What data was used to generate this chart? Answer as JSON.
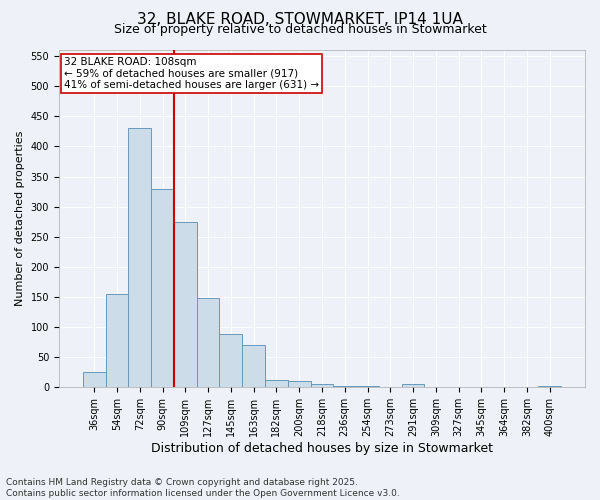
{
  "title1": "32, BLAKE ROAD, STOWMARKET, IP14 1UA",
  "title2": "Size of property relative to detached houses in Stowmarket",
  "xlabel": "Distribution of detached houses by size in Stowmarket",
  "ylabel": "Number of detached properties",
  "bar_color": "#ccdce8",
  "bar_edge_color": "#6699bb",
  "background_color": "#eef2f8",
  "grid_color": "#ffffff",
  "categories": [
    "36sqm",
    "54sqm",
    "72sqm",
    "90sqm",
    "109sqm",
    "127sqm",
    "145sqm",
    "163sqm",
    "182sqm",
    "200sqm",
    "218sqm",
    "236sqm",
    "254sqm",
    "273sqm",
    "291sqm",
    "309sqm",
    "327sqm",
    "345sqm",
    "364sqm",
    "382sqm",
    "400sqm"
  ],
  "values": [
    25,
    155,
    430,
    330,
    275,
    148,
    88,
    70,
    12,
    10,
    5,
    3,
    2,
    1,
    5,
    1,
    1,
    1,
    1,
    1,
    3
  ],
  "vline_position": 3.5,
  "vline_color": "#cc0000",
  "annotation_text": "32 BLAKE ROAD: 108sqm\n← 59% of detached houses are smaller (917)\n41% of semi-detached houses are larger (631) →",
  "annotation_box_color": "#ffffff",
  "annotation_box_edge_color": "#cc0000",
  "footer_text": "Contains HM Land Registry data © Crown copyright and database right 2025.\nContains public sector information licensed under the Open Government Licence v3.0.",
  "ylim": [
    0,
    560
  ],
  "yticks": [
    0,
    50,
    100,
    150,
    200,
    250,
    300,
    350,
    400,
    450,
    500,
    550
  ],
  "title1_fontsize": 11,
  "title2_fontsize": 9,
  "ylabel_fontsize": 8,
  "xlabel_fontsize": 9,
  "tick_fontsize": 7,
  "annotation_fontsize": 7.5,
  "footer_fontsize": 6.5
}
